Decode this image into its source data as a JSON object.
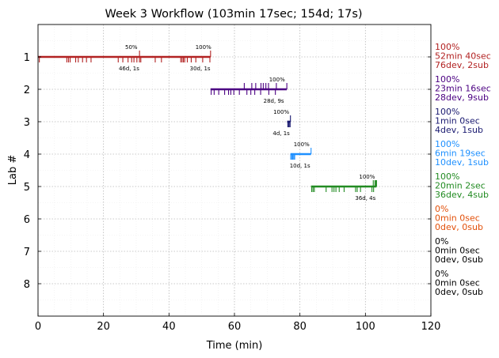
{
  "chart_data": {
    "type": "timeline",
    "title": "Week 3 Workflow (103min 17sec; 154d; 17s)",
    "xlabel": "Time (min)",
    "ylabel": "Lab #",
    "xlim": [
      0,
      120
    ],
    "ylim": [
      9,
      0
    ],
    "xticks": [
      0,
      20,
      40,
      60,
      80,
      100,
      120
    ],
    "yticks": [
      1,
      2,
      3,
      4,
      5,
      6,
      7,
      8
    ],
    "grid": true,
    "labs": [
      {
        "lab": 1,
        "color": "#b22222",
        "start": 0,
        "end": 52.7,
        "side": [
          "100%",
          "52min 40sec",
          "76dev, 2sub"
        ],
        "devs": [
          0.4,
          8.8,
          9.3,
          9.8,
          11.5,
          12.3,
          13.6,
          14.8,
          16.2,
          24.5,
          25.9,
          27.5,
          28.6,
          29.3,
          30.2,
          31.0,
          31.4,
          35.8,
          37.7,
          43.6,
          44.0,
          44.4,
          44.8,
          45.6,
          46.8,
          48.2,
          50.3,
          52.5
        ],
        "subs": [
          31.0,
          52.7
        ],
        "pct_labels": [
          {
            "x": 28.5,
            "text": "50%"
          },
          {
            "x": 50.5,
            "text": "100%"
          }
        ],
        "count_labels": [
          {
            "x": 27.8,
            "text": "46d, 1s"
          },
          {
            "x": 49.5,
            "text": "30d, 1s"
          }
        ]
      },
      {
        "lab": 2,
        "color": "#4b0082",
        "start": 52.7,
        "end": 76.0,
        "side": [
          "100%",
          "23min 16sec",
          "28dev, 9sub"
        ],
        "devs": [
          52.9,
          53.8,
          55.2,
          57.0,
          58.2,
          58.9,
          59.8,
          61.5,
          63.8,
          65.0,
          66.2,
          68.0,
          70.5,
          72.5
        ],
        "subs": [
          63.0,
          65.3,
          66.5,
          68.1,
          68.8,
          69.6,
          70.4,
          72.8,
          76.0
        ],
        "pct_labels": [
          {
            "x": 73.0,
            "text": "100%"
          }
        ],
        "count_labels": [
          {
            "x": 72.0,
            "text": "28d, 9s"
          }
        ]
      },
      {
        "lab": 3,
        "color": "#191970",
        "start": 76.1,
        "end": 77.1,
        "side": [
          "100%",
          "1min 0sec",
          "4dev, 1sub"
        ],
        "devs": [
          76.3,
          76.6,
          76.9,
          77.0
        ],
        "subs": [
          77.1
        ],
        "pct_labels": [
          {
            "x": 74.3,
            "text": "100%"
          }
        ],
        "count_labels": [
          {
            "x": 74.3,
            "text": "4d, 1s"
          }
        ]
      },
      {
        "lab": 4,
        "color": "#1e90ff",
        "start": 77.1,
        "end": 83.4,
        "side": [
          "100%",
          "6min 19sec",
          "10dev, 1sub"
        ],
        "devs": [
          77.2,
          77.5,
          77.8,
          78.1,
          78.4
        ],
        "subs": [
          83.4
        ],
        "pct_labels": [
          {
            "x": 80.5,
            "text": "100%"
          }
        ],
        "count_labels": [
          {
            "x": 80.0,
            "text": "10d, 1s"
          }
        ]
      },
      {
        "lab": 5,
        "color": "#228b22",
        "start": 83.4,
        "end": 103.4,
        "side": [
          "100%",
          "20min 2sec",
          "36dev, 4sub"
        ],
        "devs": [
          83.6,
          84.0,
          84.4,
          88.0,
          89.8,
          90.4,
          91.0,
          92.0,
          93.5,
          97.0,
          97.5,
          98.5,
          102.0,
          102.5
        ],
        "subs": [
          102.4,
          102.9,
          103.2,
          103.4
        ],
        "pct_labels": [
          {
            "x": 100.5,
            "text": "100%"
          }
        ],
        "count_labels": [
          {
            "x": 100.0,
            "text": "36d, 4s"
          }
        ]
      },
      {
        "lab": 6,
        "color": "#e2500a",
        "start": null,
        "end": null,
        "side": [
          "0%",
          "0min 0sec",
          "0dev, 0sub"
        ],
        "devs": [],
        "subs": [],
        "pct_labels": [],
        "count_labels": []
      },
      {
        "lab": 7,
        "color": "#000000",
        "start": null,
        "end": null,
        "side": [
          "0%",
          "0min 0sec",
          "0dev, 0sub"
        ],
        "devs": [],
        "subs": [],
        "pct_labels": [],
        "count_labels": []
      },
      {
        "lab": 8,
        "color": "#000000",
        "start": null,
        "end": null,
        "side": [
          "0%",
          "0min 0sec",
          "0dev, 0sub"
        ],
        "devs": [],
        "subs": [],
        "pct_labels": [],
        "count_labels": []
      }
    ]
  }
}
